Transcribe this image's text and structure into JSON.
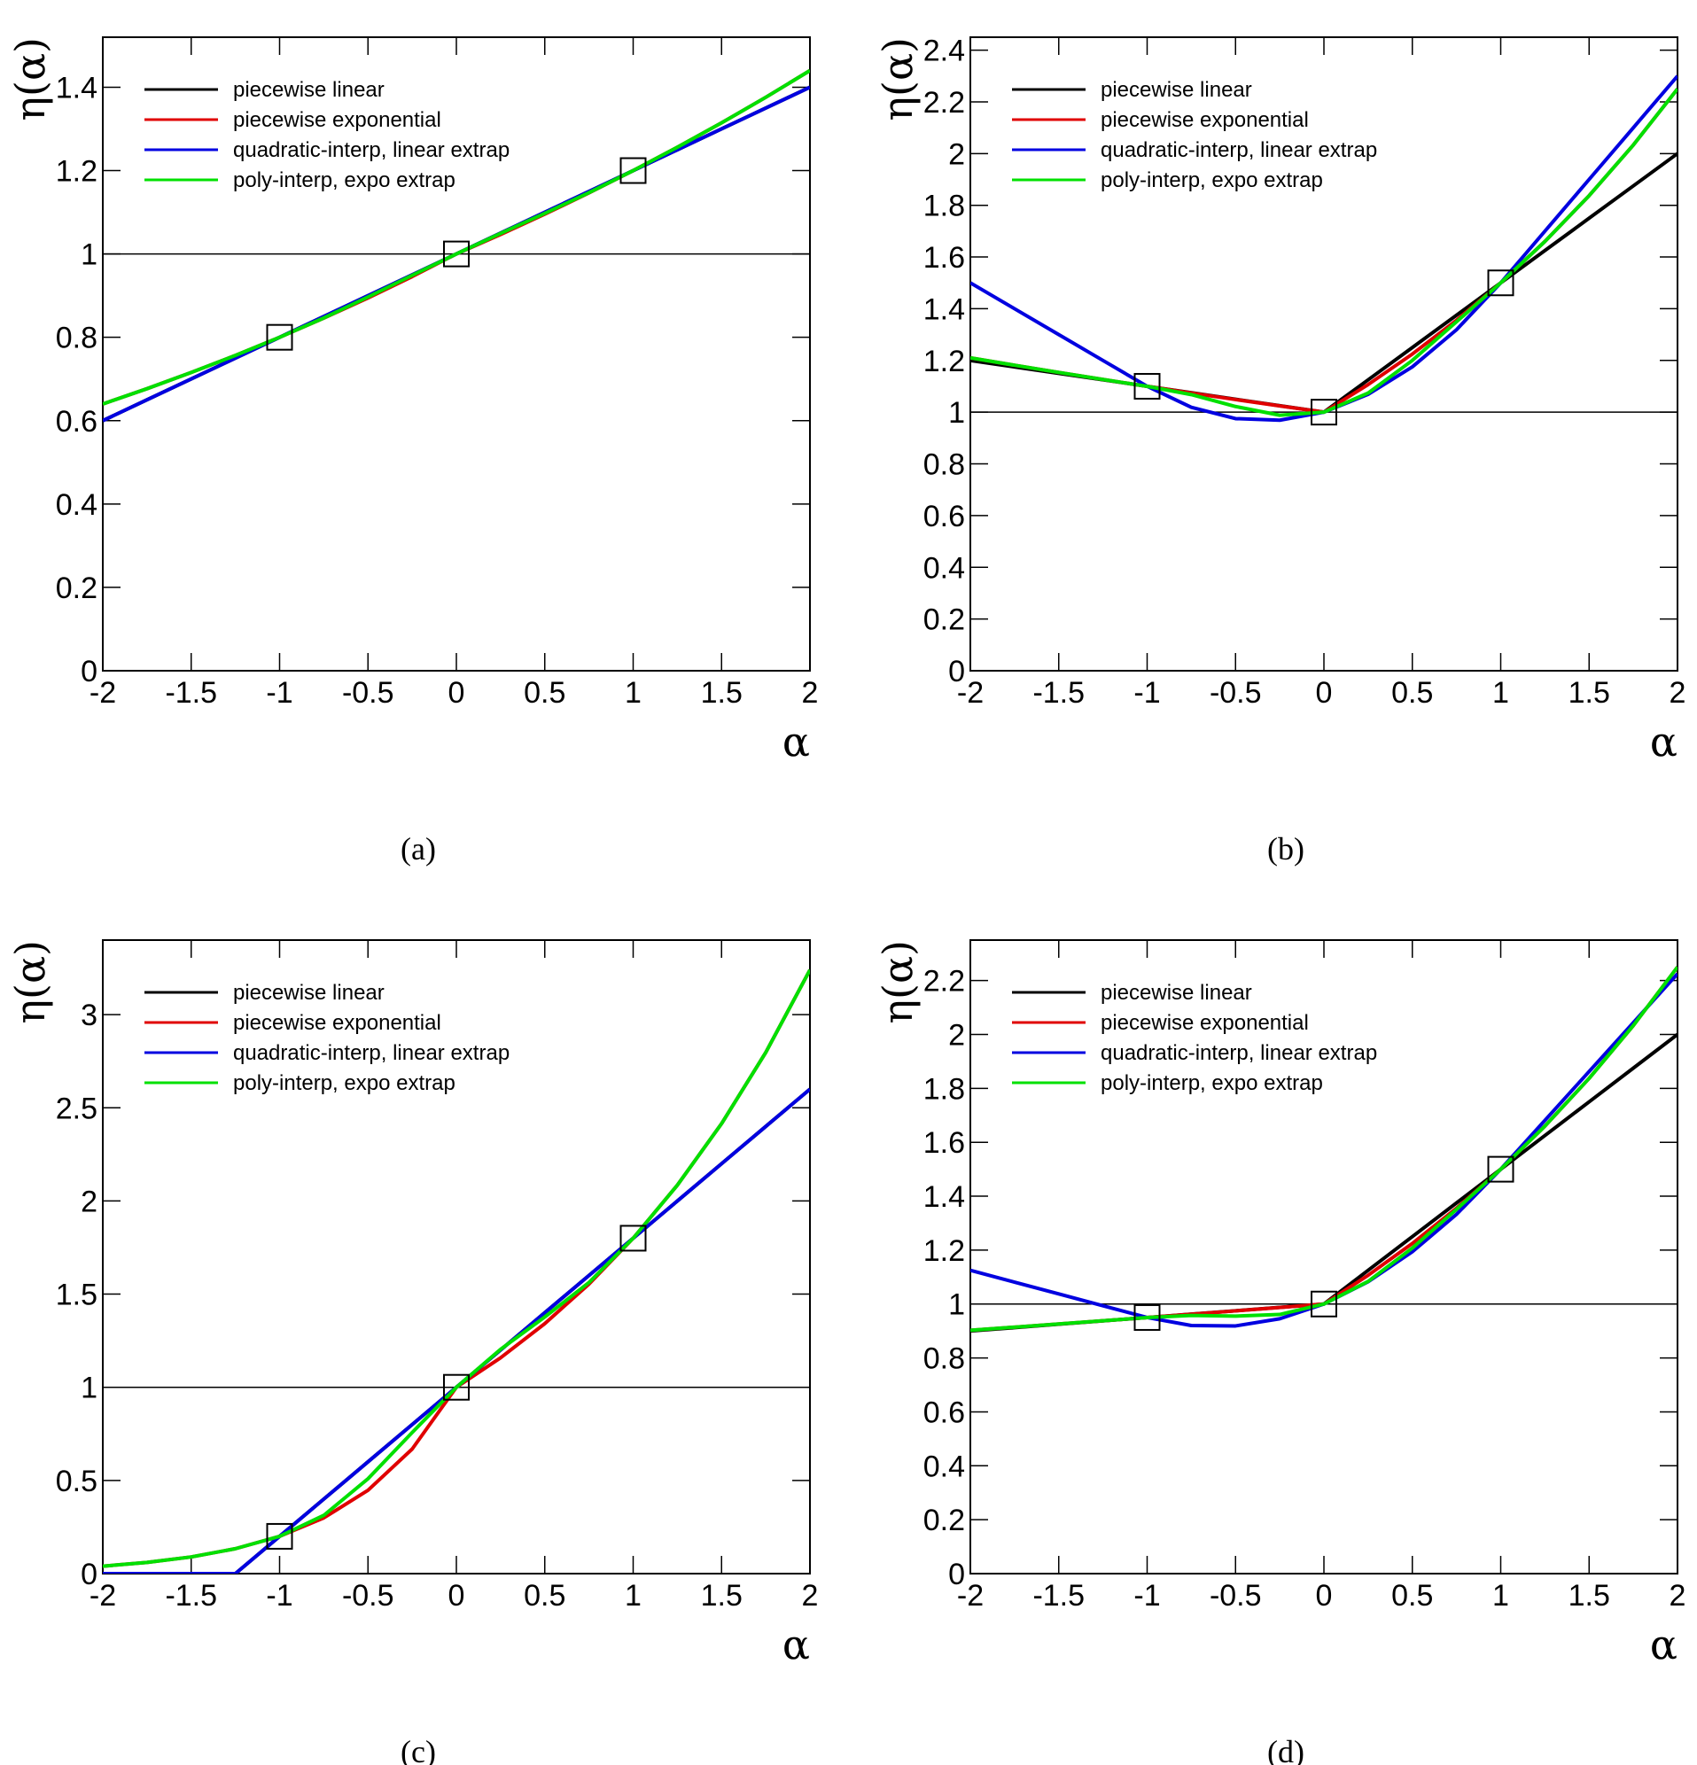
{
  "chart_data": [
    {
      "type": "line",
      "caption": "(a)",
      "xlabel": "α",
      "ylabel": "η(α)",
      "legend": "top-left",
      "hline": 1,
      "xlim": [
        -2,
        2
      ],
      "ylim": [
        0,
        1.52
      ],
      "xticks": [
        -2,
        -1.5,
        -1,
        -0.5,
        0,
        0.5,
        1,
        1.5,
        2
      ],
      "yticks": [
        0,
        0.2,
        0.4,
        0.6,
        0.8,
        1,
        1.2,
        1.4
      ],
      "x": [
        -2,
        -1.75,
        -1.5,
        -1.25,
        -1,
        -0.75,
        -0.5,
        -0.25,
        0,
        0.25,
        0.5,
        0.75,
        1,
        1.25,
        1.5,
        1.75,
        2
      ],
      "series": [
        {
          "name": "piecewise linear",
          "color": "#000000",
          "values": [
            0.6,
            0.65,
            0.7,
            0.75,
            0.8,
            0.85,
            0.9,
            0.95,
            1,
            1.05,
            1.1,
            1.15,
            1.2,
            1.25,
            1.3,
            1.35,
            1.4
          ]
        },
        {
          "name": "piecewise exponential",
          "color": "#e00000",
          "values": [
            0.64,
            0.6767,
            0.7155,
            0.7566,
            0.8,
            0.8459,
            0.8944,
            0.9457,
            1,
            1.0466,
            1.0954,
            1.1465,
            1.2,
            1.256,
            1.3145,
            1.3758,
            1.44
          ]
        },
        {
          "name": "quadratic-interp, linear extrap",
          "color": "#0000e0",
          "values": [
            0.6,
            0.65,
            0.7,
            0.75,
            0.8,
            0.85,
            0.9,
            0.95,
            1,
            1.05,
            1.1,
            1.15,
            1.2,
            1.25,
            1.3,
            1.35,
            1.4
          ]
        },
        {
          "name": "poly-interp, expo extrap",
          "color": "#00e000",
          "values": [
            0.64,
            0.6767,
            0.7155,
            0.7566,
            0.8,
            0.8464,
            0.8966,
            0.9487,
            1,
            1.0493,
            1.0974,
            1.147,
            1.2,
            1.256,
            1.3145,
            1.3758,
            1.44
          ]
        }
      ],
      "points": {
        "x": [
          -1,
          0,
          1
        ],
        "values": [
          0.8,
          1,
          1.2
        ]
      }
    },
    {
      "type": "line",
      "caption": "(b)",
      "xlabel": "α",
      "ylabel": "η(α)",
      "legend": "top-left",
      "hline": 1,
      "xlim": [
        -2,
        2
      ],
      "ylim": [
        0,
        2.45
      ],
      "xticks": [
        -2,
        -1.5,
        -1,
        -0.5,
        0,
        0.5,
        1,
        1.5,
        2
      ],
      "yticks": [
        0,
        0.2,
        0.4,
        0.6,
        0.8,
        1,
        1.2,
        1.4,
        1.6,
        1.8,
        2,
        2.2,
        2.4
      ],
      "x": [
        -2,
        -1.75,
        -1.5,
        -1.25,
        -1,
        -0.75,
        -0.5,
        -0.25,
        0,
        0.25,
        0.5,
        0.75,
        1,
        1.25,
        1.5,
        1.75,
        2
      ],
      "series": [
        {
          "name": "piecewise linear",
          "color": "#000000",
          "values": [
            1.2,
            1.175,
            1.15,
            1.125,
            1.1,
            1.075,
            1.05,
            1.025,
            1,
            1.125,
            1.25,
            1.375,
            1.5,
            1.625,
            1.75,
            1.875,
            2
          ]
        },
        {
          "name": "piecewise exponential",
          "color": "#e00000",
          "values": [
            1.21,
            1.1815,
            1.1537,
            1.1265,
            1.1,
            1.0741,
            1.0488,
            1.0241,
            1,
            1.1067,
            1.2247,
            1.3554,
            1.5,
            1.6601,
            1.8371,
            2.0331,
            2.25
          ]
        },
        {
          "name": "quadratic-interp, linear extrap",
          "color": "#0000e0",
          "values": [
            1.5,
            1.4,
            1.3,
            1.2,
            1.1,
            1.0188,
            0.975,
            0.9688,
            1,
            1.0688,
            1.175,
            1.3188,
            1.5,
            1.7,
            1.9,
            2.1,
            2.3
          ]
        },
        {
          "name": "poly-interp, expo extrap",
          "color": "#00e000",
          "values": [
            1.21,
            1.1815,
            1.1537,
            1.1265,
            1.1,
            1.0679,
            1.0219,
            0.9881,
            1,
            1.0739,
            1.2,
            1.3496,
            1.5,
            1.6601,
            1.8371,
            2.0331,
            2.25
          ]
        }
      ],
      "points": {
        "x": [
          -1,
          0,
          1
        ],
        "values": [
          1.1,
          1,
          1.5
        ]
      }
    },
    {
      "type": "line",
      "caption": "(c)",
      "xlabel": "α",
      "ylabel": "η(α)",
      "legend": "top-left",
      "hline": 1,
      "xlim": [
        -2,
        2
      ],
      "ylim": [
        0,
        3.4
      ],
      "xticks": [
        -2,
        -1.5,
        -1,
        -0.5,
        0,
        0.5,
        1,
        1.5,
        2
      ],
      "yticks": [
        0,
        0.5,
        1,
        1.5,
        2,
        2.5,
        3
      ],
      "x": [
        -2,
        -1.75,
        -1.5,
        -1.25,
        -1,
        -0.75,
        -0.5,
        -0.25,
        0,
        0.25,
        0.5,
        0.75,
        1,
        1.25,
        1.5,
        1.75,
        2
      ],
      "series": [
        {
          "name": "piecewise linear",
          "color": "#000000",
          "values": [
            0,
            0,
            0,
            0,
            0.2,
            0.4,
            0.6,
            0.8,
            1,
            1.2,
            1.4,
            1.6,
            1.8,
            2,
            2.2,
            2.4,
            2.6
          ]
        },
        {
          "name": "piecewise exponential",
          "color": "#e00000",
          "values": [
            0.04,
            0.0598,
            0.0894,
            0.1337,
            0.2,
            0.2991,
            0.4472,
            0.6687,
            1,
            1.1583,
            1.3416,
            1.554,
            1.8,
            2.0848,
            2.415,
            2.7972,
            3.24
          ]
        },
        {
          "name": "quadratic-interp, linear extrap",
          "color": "#0000e0",
          "values": [
            0,
            0,
            0,
            0,
            0.2,
            0.4,
            0.6,
            0.8,
            1,
            1.2,
            1.4,
            1.6,
            1.8,
            2,
            2.2,
            2.4,
            2.6
          ]
        },
        {
          "name": "poly-interp, expo extrap",
          "color": "#00e000",
          "values": [
            0.04,
            0.0598,
            0.0894,
            0.1337,
            0.2,
            0.3127,
            0.5091,
            0.7571,
            1,
            1.2039,
            1.3772,
            1.5625,
            1.8,
            2.0848,
            2.415,
            2.7972,
            3.24
          ]
        }
      ],
      "points": {
        "x": [
          -1,
          0,
          1
        ],
        "values": [
          0.2,
          1,
          1.8
        ]
      }
    },
    {
      "type": "line",
      "caption": "(d)",
      "xlabel": "α",
      "ylabel": "η(α)",
      "legend": "top-left",
      "hline": 1,
      "xlim": [
        -2,
        2
      ],
      "ylim": [
        0,
        2.35
      ],
      "xticks": [
        -2,
        -1.5,
        -1,
        -0.5,
        0,
        0.5,
        1,
        1.5,
        2
      ],
      "yticks": [
        0,
        0.2,
        0.4,
        0.6,
        0.8,
        1,
        1.2,
        1.4,
        1.6,
        1.8,
        2,
        2.2
      ],
      "x": [
        -2,
        -1.75,
        -1.5,
        -1.25,
        -1,
        -0.75,
        -0.5,
        -0.25,
        0,
        0.25,
        0.5,
        0.75,
        1,
        1.25,
        1.5,
        1.75,
        2
      ],
      "series": [
        {
          "name": "piecewise linear",
          "color": "#000000",
          "values": [
            0.9,
            0.9125,
            0.925,
            0.9375,
            0.95,
            0.9625,
            0.975,
            0.9875,
            1,
            1.125,
            1.25,
            1.375,
            1.5,
            1.625,
            1.75,
            1.875,
            2
          ]
        },
        {
          "name": "piecewise exponential",
          "color": "#e00000",
          "values": [
            0.9025,
            0.9142,
            0.926,
            0.9379,
            0.95,
            0.9623,
            0.9747,
            0.9873,
            1,
            1.1067,
            1.2247,
            1.3554,
            1.5,
            1.6601,
            1.8371,
            2.0331,
            2.25
          ]
        },
        {
          "name": "quadratic-interp, linear extrap",
          "color": "#0000e0",
          "values": [
            1.125,
            1.0813,
            1.0375,
            0.9938,
            0.95,
            0.9203,
            0.9188,
            0.9453,
            1,
            1.0828,
            1.1938,
            1.3328,
            1.5,
            1.6813,
            1.8625,
            2.0438,
            2.225
          ]
        },
        {
          "name": "poly-interp, expo extrap",
          "color": "#00e000",
          "values": [
            0.9025,
            0.9142,
            0.926,
            0.9379,
            0.95,
            0.9578,
            0.9553,
            0.9612,
            1,
            1.0841,
            1.2076,
            1.3514,
            1.5,
            1.6601,
            1.8371,
            2.0331,
            2.25
          ]
        }
      ],
      "points": {
        "x": [
          -1,
          0,
          1
        ],
        "values": [
          0.95,
          1,
          1.5
        ]
      }
    }
  ]
}
